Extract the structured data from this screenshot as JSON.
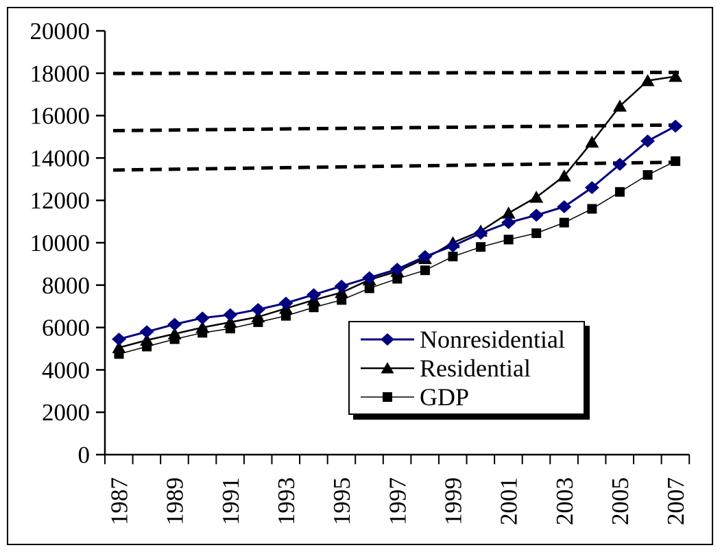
{
  "figure": {
    "background": "#ffffff",
    "border_color": "#000000",
    "text_color": "#000000"
  },
  "chart_data": {
    "type": "line",
    "title": "",
    "xlabel": "",
    "ylabel": "",
    "x": [
      1987,
      1988,
      1989,
      1990,
      1991,
      1992,
      1993,
      1994,
      1995,
      1996,
      1997,
      1998,
      1999,
      2000,
      2001,
      2002,
      2003,
      2004,
      2005,
      2006,
      2007
    ],
    "series": [
      {
        "name": "Nonresidential",
        "marker": "diamond",
        "color": "#000080",
        "line_width": 3,
        "values": [
          5450,
          5800,
          6150,
          6450,
          6600,
          6850,
          7150,
          7550,
          7950,
          8350,
          8750,
          9350,
          9850,
          10450,
          10950,
          11300,
          11700,
          12600,
          13700,
          14800,
          15500
        ]
      },
      {
        "name": "Residential",
        "marker": "triangle",
        "color": "#000000",
        "line_width": 2.5,
        "values": [
          5050,
          5400,
          5700,
          6000,
          6250,
          6500,
          6900,
          7300,
          7650,
          8250,
          8650,
          9250,
          10000,
          10550,
          11400,
          12150,
          13150,
          14750,
          16450,
          17650,
          17850
        ]
      },
      {
        "name": "GDP",
        "marker": "square",
        "color": "#000000",
        "line_width": 1.5,
        "values": [
          4750,
          5100,
          5450,
          5750,
          5950,
          6250,
          6550,
          6950,
          7300,
          7850,
          8300,
          8700,
          9350,
          9800,
          10150,
          10450,
          10950,
          11600,
          12400,
          13200,
          13850
        ]
      }
    ],
    "reference_lines": [
      {
        "style": "dashed",
        "color": "#000000",
        "start_value": 17990,
        "end_value": 18040
      },
      {
        "style": "dashed",
        "color": "#000000",
        "start_value": 15290,
        "end_value": 15560
      },
      {
        "style": "dashed",
        "color": "#000000",
        "start_value": 13430,
        "end_value": 13800
      }
    ],
    "ylim": [
      0,
      20000
    ],
    "ytick_step": 2000,
    "ytick_labels": [
      "0",
      "2000",
      "4000",
      "6000",
      "8000",
      "10000",
      "12000",
      "14000",
      "16000",
      "18000",
      "20000"
    ],
    "xtick_labels": [
      "1987",
      "1989",
      "1991",
      "1993",
      "1995",
      "1997",
      "1999",
      "2001",
      "2003",
      "2005",
      "2007"
    ],
    "grid": "off",
    "legend_position": "inside-lower-center"
  }
}
